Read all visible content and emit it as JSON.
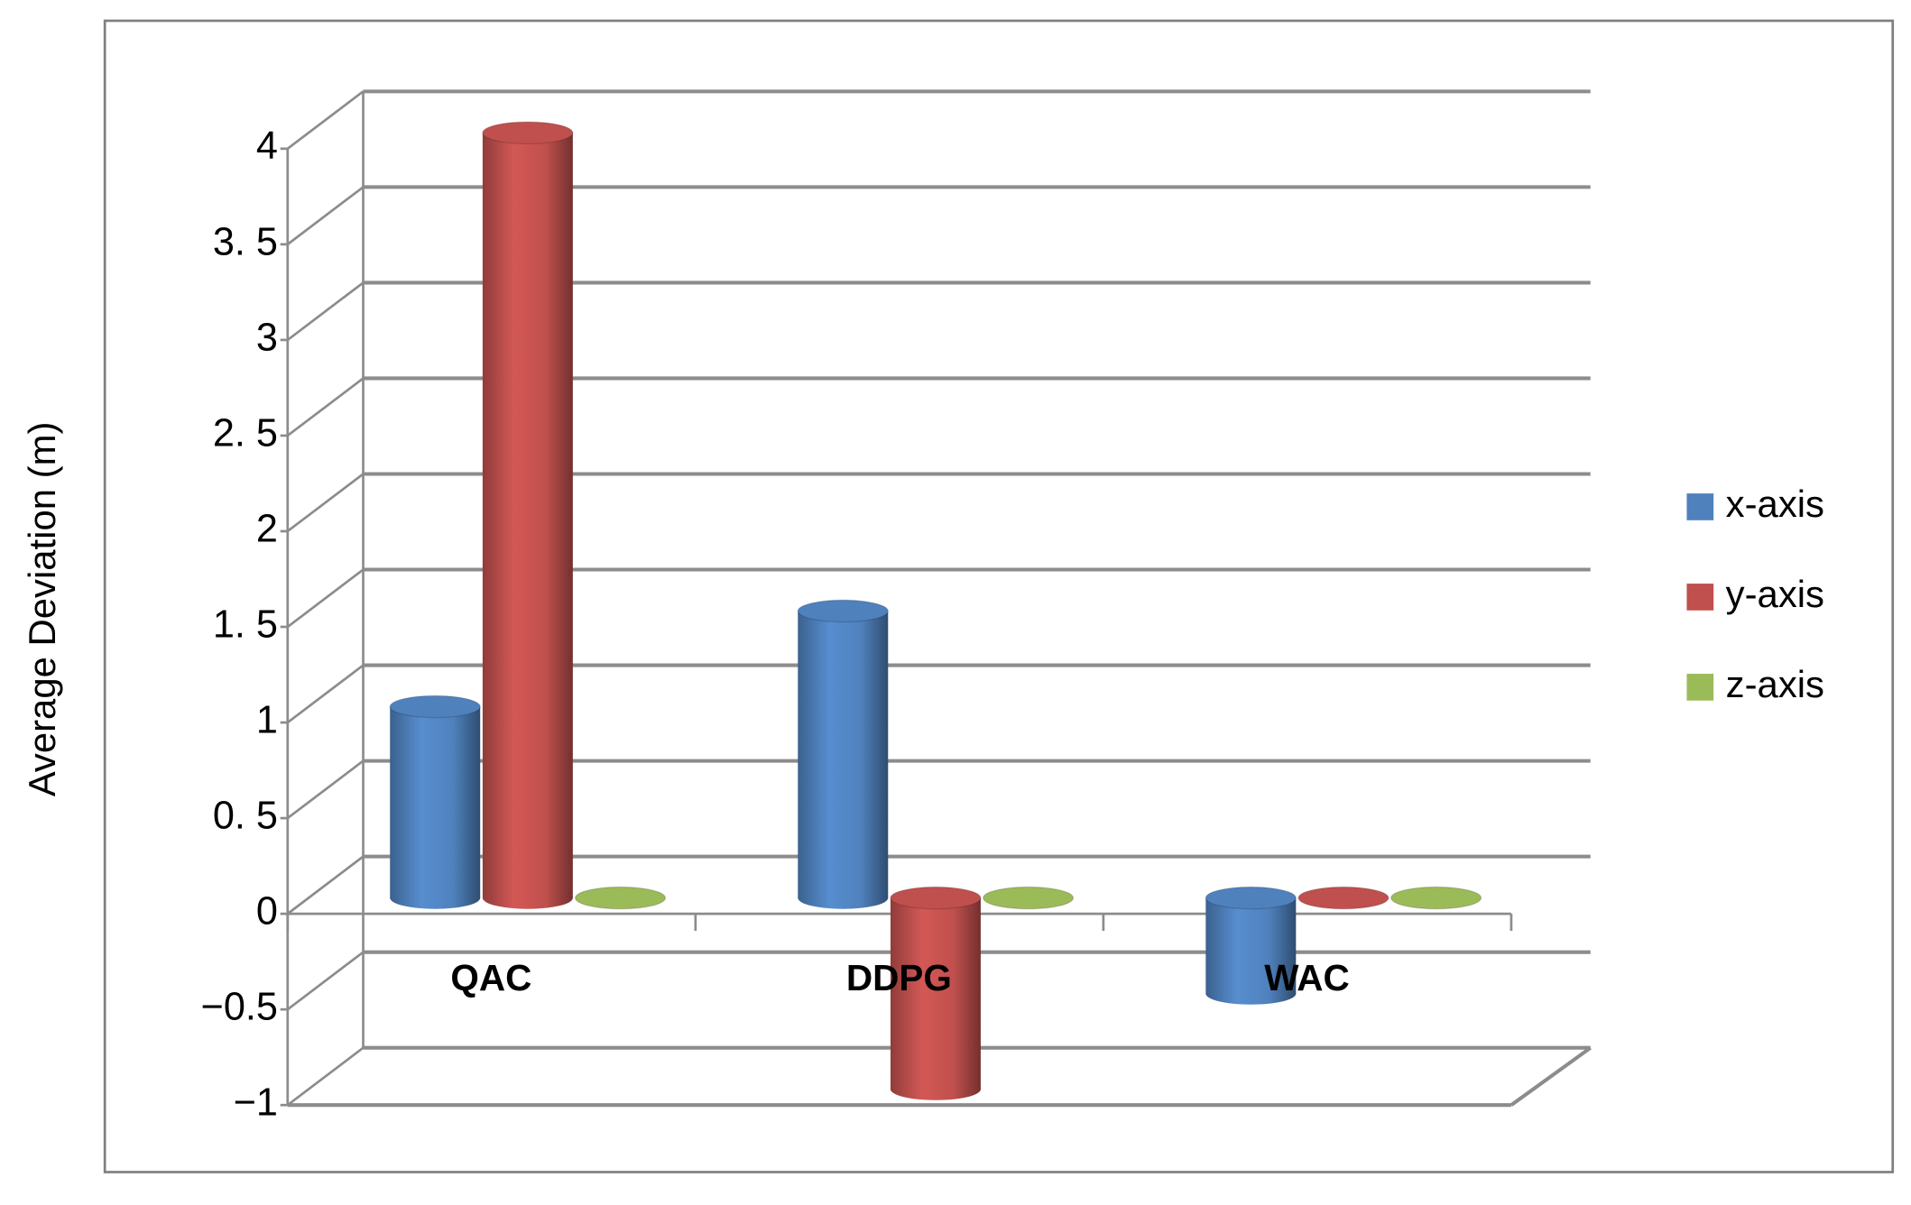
{
  "chart_data": {
    "type": "bar3d",
    "y_label": "Average  Deviation (m)",
    "categories": [
      "QAC",
      "DDPG",
      "WAC"
    ],
    "series": [
      {
        "name": "x-axis",
        "color": "#4F81BD",
        "values": [
          1.0,
          1.5,
          -0.5
        ]
      },
      {
        "name": "y-axis",
        "color": "#C0504D",
        "values": [
          4.0,
          -1.0,
          0
        ]
      },
      {
        "name": "z-axis",
        "color": "#9BBB59",
        "values": [
          0,
          0,
          0
        ]
      }
    ],
    "ylim": [
      -1,
      4
    ],
    "yticks": [
      {
        "value": -1,
        "label": "−1"
      },
      {
        "value": -0.5,
        "label": "−0.5"
      },
      0,
      {
        "value": 0.5,
        "label": "0. 5"
      },
      1,
      {
        "value": 1.5,
        "label": "1. 5"
      },
      2,
      {
        "value": 2.5,
        "label": "2. 5"
      },
      3,
      {
        "value": 3.5,
        "label": "3. 5"
      },
      4
    ],
    "grid": true,
    "legend": "right"
  }
}
